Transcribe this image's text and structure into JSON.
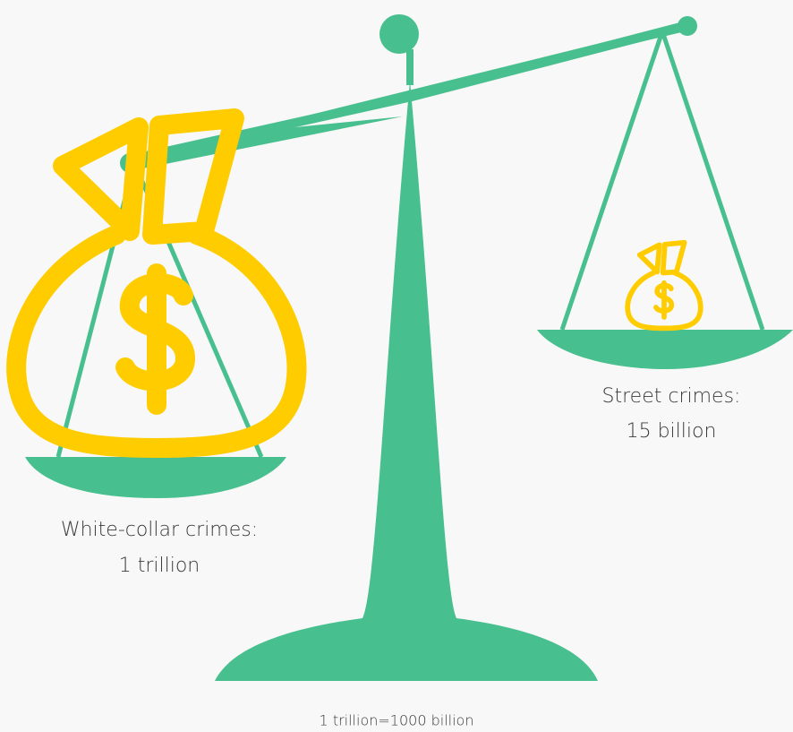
{
  "left_pan": {
    "label": [
      "White-collar crimes:",
      "1 trillion"
    ]
  },
  "right_pan": {
    "label": [
      "Street crimes:",
      "15 billion"
    ]
  },
  "footnote": "1 trillion=1000 billion"
}
